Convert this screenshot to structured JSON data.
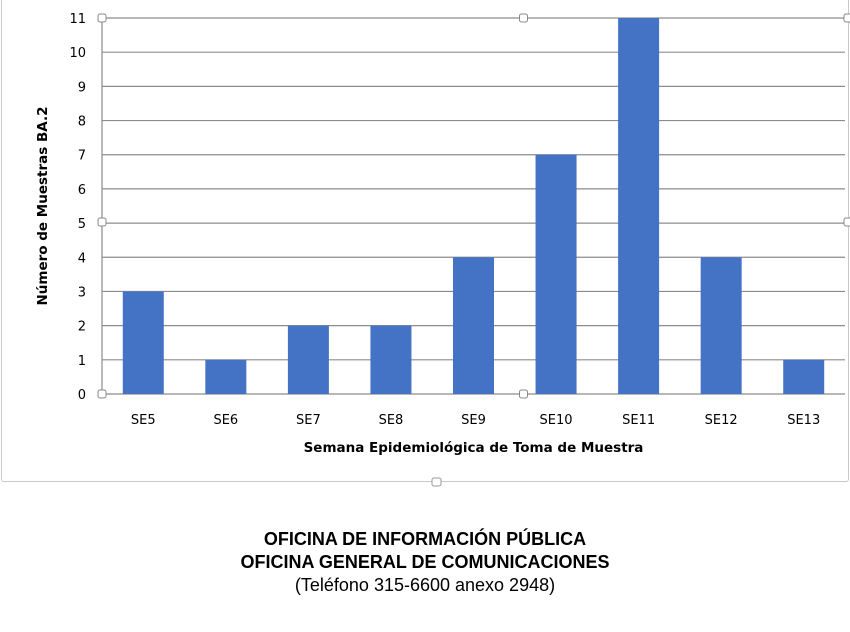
{
  "chart_data": {
    "type": "bar",
    "categories": [
      "SE5",
      "SE6",
      "SE7",
      "SE8",
      "SE9",
      "SE10",
      "SE11",
      "SE12",
      "SE13"
    ],
    "values": [
      3,
      1,
      2,
      2,
      4,
      7,
      11,
      4,
      1
    ],
    "title": "",
    "xlabel": "Semana Epidemiológica de Toma de Muestra",
    "ylabel": "Número de Muestras BA.2",
    "ylim": [
      0,
      11
    ],
    "yticks": [
      0,
      1,
      2,
      3,
      4,
      5,
      6,
      7,
      8,
      9,
      10,
      11
    ],
    "grid": true,
    "legend": "none",
    "bar_color": "#4472c4",
    "grid_color": "#8c8c8c"
  },
  "footer": {
    "line1": "OFICINA DE INFORMACIÓN PÚBLICA",
    "line2": "OFICINA GENERAL DE COMUNICACIONES",
    "line3": "(Teléfono 315-6600 anexo 2948)"
  }
}
